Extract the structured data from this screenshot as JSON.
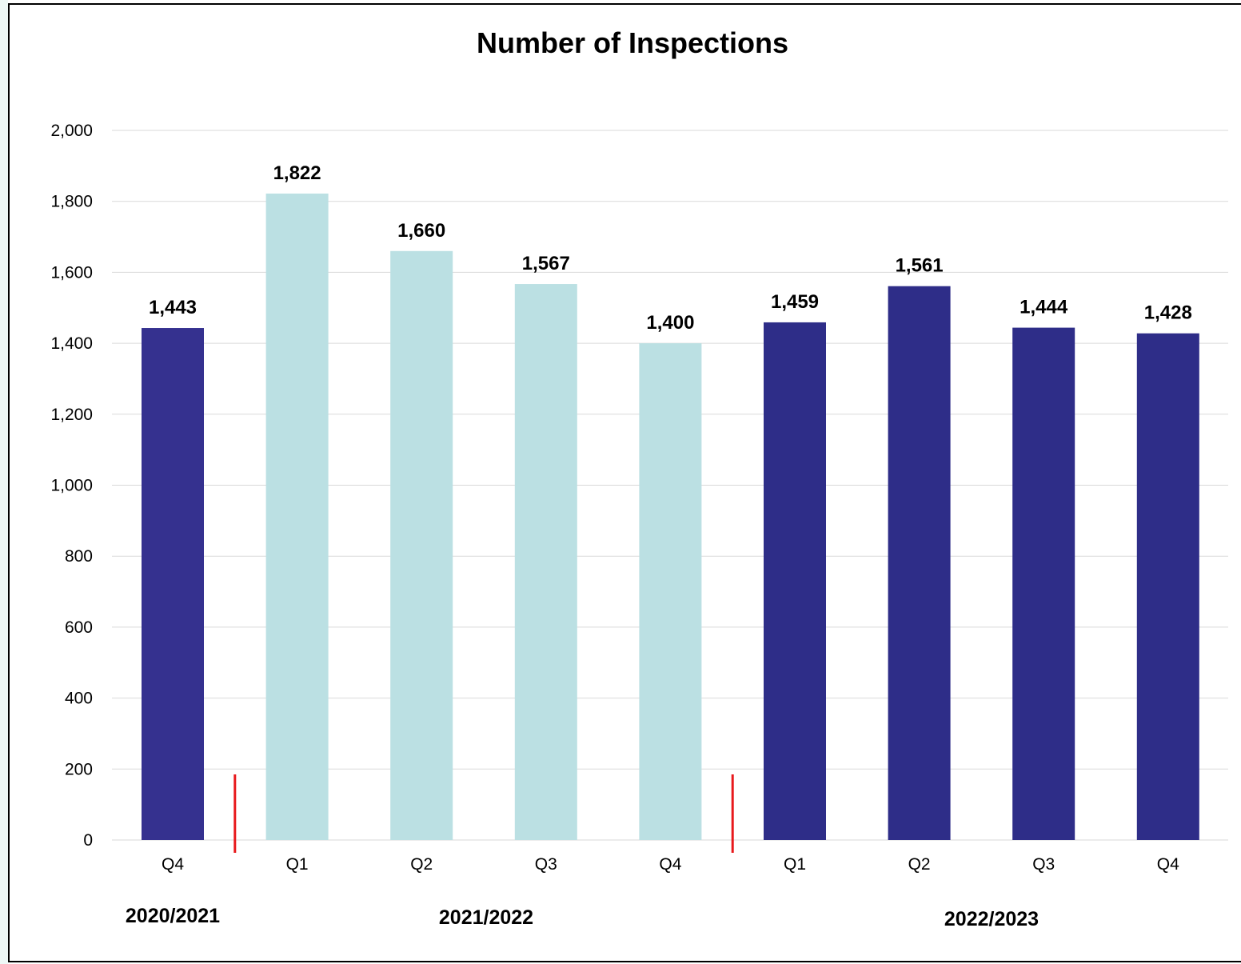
{
  "chart_data": {
    "type": "bar",
    "title": "Number of Inspections",
    "categories": [
      "Q4",
      "Q1",
      "Q2",
      "Q3",
      "Q4",
      "Q1",
      "Q2",
      "Q3",
      "Q4"
    ],
    "values": [
      1443,
      1822,
      1660,
      1567,
      1400,
      1459,
      1561,
      1444,
      1428
    ],
    "value_labels": [
      "1,443",
      "1,822",
      "1,660",
      "1,567",
      "1,400",
      "1,459",
      "1,561",
      "1,444",
      "1,428"
    ],
    "groups": [
      {
        "label": "2020/2021",
        "start": 0,
        "end": 0
      },
      {
        "label": "2021/2022",
        "start": 1,
        "end": 4
      },
      {
        "label": "2022/2023",
        "start": 5,
        "end": 8
      }
    ],
    "bar_colors": [
      "#35318f",
      "#bbe0e3",
      "#bbe0e3",
      "#bbe0e3",
      "#bbe0e3",
      "#2e2d88",
      "#2e2d88",
      "#2e2d88",
      "#2e2d88"
    ],
    "separator_color": "#e8191c",
    "ylim": [
      0,
      2000
    ],
    "yticks": [
      0,
      200,
      400,
      600,
      800,
      1000,
      1200,
      1400,
      1600,
      1800,
      2000
    ],
    "ytick_labels": [
      "0",
      "200",
      "400",
      "600",
      "800",
      "1,000",
      "1,200",
      "1,400",
      "1,600",
      "1,800",
      "2,000"
    ],
    "grid": true,
    "xlabel": "",
    "ylabel": ""
  }
}
